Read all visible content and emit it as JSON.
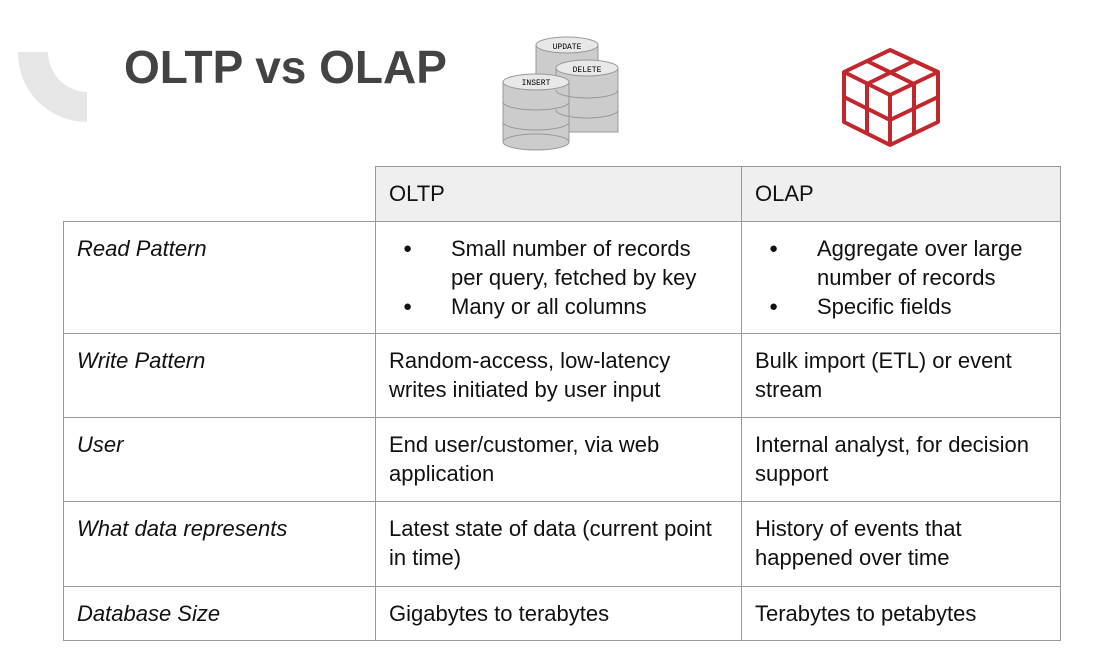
{
  "title": "OLTP vs OLAP",
  "icons": {
    "db_labels": [
      "UPDATE",
      "DELETE",
      "INSERT"
    ]
  },
  "table": {
    "columns": [
      "OLTP",
      "OLAP"
    ],
    "rows": [
      {
        "label": "Read Pattern",
        "cells": [
          [
            "Small number of records per query, fetched by key",
            "Many or all columns"
          ],
          [
            "Aggregate over large number of records",
            "Specific fields"
          ]
        ]
      },
      {
        "label": "Write Pattern",
        "cells": [
          "Random-access, low-latency writes initiated by user input",
          "Bulk import (ETL) or event stream"
        ]
      },
      {
        "label": "User",
        "cells": [
          "End user/customer, via web application",
          "Internal analyst, for decision support"
        ]
      },
      {
        "label": "What data represents",
        "cells": [
          "Latest state of data (current point in time)",
          "History of events that happened over time"
        ]
      },
      {
        "label": "Database Size",
        "cells": [
          "Gigabytes to terabytes",
          "Terabytes to petabytes"
        ]
      }
    ]
  }
}
